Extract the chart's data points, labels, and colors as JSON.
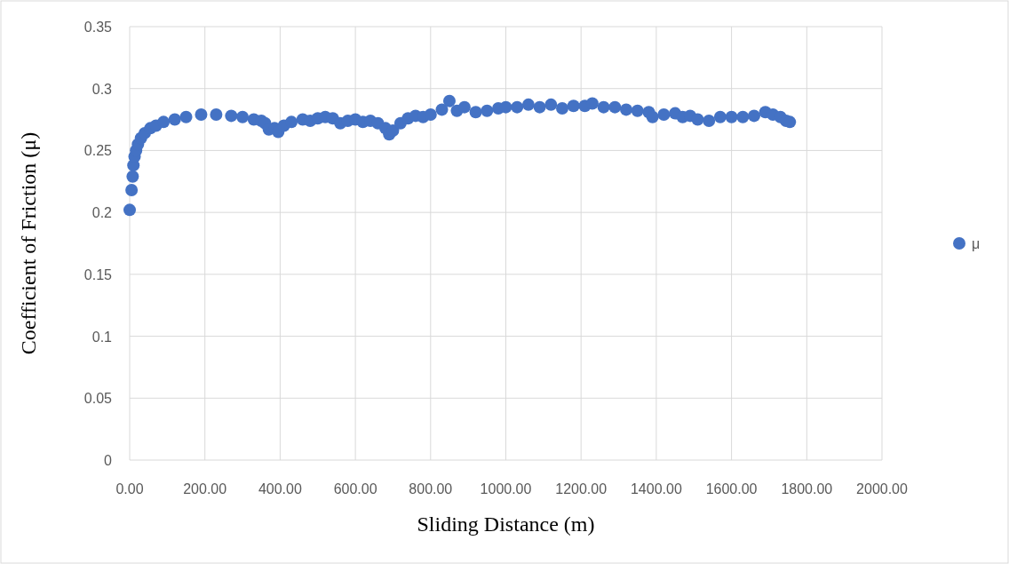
{
  "chart_data": {
    "type": "scatter",
    "xlabel": "Sliding Distance (m)",
    "ylabel": "Coefficient  of Friction (μ)",
    "xlim": [
      0,
      2000
    ],
    "ylim": [
      0,
      0.35
    ],
    "xticks": [
      {
        "value": 0,
        "label": "0.00"
      },
      {
        "value": 200,
        "label": "200.00"
      },
      {
        "value": 400,
        "label": "400.00"
      },
      {
        "value": 600,
        "label": "600.00"
      },
      {
        "value": 800,
        "label": "800.00"
      },
      {
        "value": 1000,
        "label": "1000.00"
      },
      {
        "value": 1200,
        "label": "1200.00"
      },
      {
        "value": 1400,
        "label": "1400.00"
      },
      {
        "value": 1600,
        "label": "1600.00"
      },
      {
        "value": 1800,
        "label": "1800.00"
      },
      {
        "value": 2000,
        "label": "2000.00"
      }
    ],
    "yticks": [
      0,
      0.05,
      0.1,
      0.15,
      0.2,
      0.25,
      0.3,
      0.35
    ],
    "grid": true,
    "legend": "right",
    "marker": "circle",
    "series": [
      {
        "name": "μ",
        "color": "#4472c4",
        "x": [
          0,
          5,
          8,
          10,
          13,
          17,
          22,
          30,
          40,
          55,
          70,
          90,
          120,
          150,
          190,
          230,
          270,
          300,
          330,
          350,
          360,
          370,
          385,
          395,
          410,
          430,
          460,
          480,
          500,
          520,
          540,
          560,
          580,
          600,
          620,
          640,
          660,
          680,
          690,
          700,
          720,
          740,
          760,
          780,
          800,
          830,
          850,
          870,
          890,
          920,
          950,
          980,
          1000,
          1030,
          1060,
          1090,
          1120,
          1150,
          1180,
          1210,
          1230,
          1260,
          1290,
          1320,
          1350,
          1380,
          1390,
          1420,
          1450,
          1470,
          1490,
          1510,
          1540,
          1570,
          1600,
          1630,
          1660,
          1690,
          1710,
          1730,
          1745,
          1755
        ],
        "values": [
          0.202,
          0.218,
          0.229,
          0.238,
          0.245,
          0.25,
          0.255,
          0.26,
          0.264,
          0.268,
          0.27,
          0.273,
          0.275,
          0.277,
          0.279,
          0.279,
          0.278,
          0.277,
          0.275,
          0.274,
          0.272,
          0.267,
          0.268,
          0.265,
          0.27,
          0.273,
          0.275,
          0.274,
          0.276,
          0.277,
          0.276,
          0.272,
          0.274,
          0.275,
          0.273,
          0.274,
          0.272,
          0.268,
          0.263,
          0.266,
          0.272,
          0.276,
          0.278,
          0.277,
          0.279,
          0.283,
          0.29,
          0.282,
          0.285,
          0.281,
          0.282,
          0.284,
          0.285,
          0.285,
          0.287,
          0.285,
          0.287,
          0.284,
          0.286,
          0.286,
          0.288,
          0.285,
          0.285,
          0.283,
          0.282,
          0.281,
          0.277,
          0.279,
          0.28,
          0.277,
          0.278,
          0.275,
          0.274,
          0.277,
          0.277,
          0.277,
          0.278,
          0.281,
          0.279,
          0.277,
          0.274,
          0.273
        ]
      }
    ]
  }
}
